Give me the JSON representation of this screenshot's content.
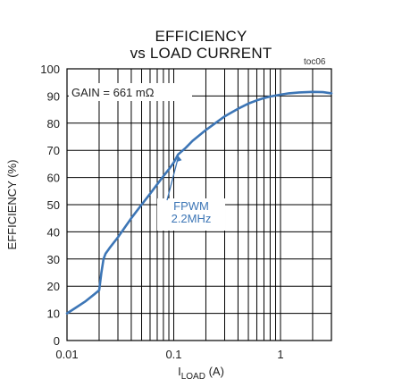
{
  "chart_data": {
    "type": "line",
    "title": "EFFICIENCY",
    "subtitle": "vs LOAD CURRENT",
    "figure_id": "toc06",
    "xlabel_main": "I",
    "xlabel_sub": "LOAD",
    "xlabel_unit": " (A)",
    "ylabel": "EFFICIENCY (%)",
    "x_scale": "log",
    "xlim": [
      0.01,
      3
    ],
    "ylim": [
      0,
      100
    ],
    "x_ticks": [
      0.01,
      0.1,
      1
    ],
    "x_tick_labels": [
      "0.01",
      "0.1",
      "1"
    ],
    "y_ticks": [
      0,
      10,
      20,
      30,
      40,
      50,
      60,
      70,
      80,
      90,
      100
    ],
    "y_tick_labels": [
      "0",
      "10",
      "20",
      "30",
      "40",
      "50",
      "60",
      "70",
      "80",
      "90",
      "100"
    ],
    "grid": true,
    "annotations": [
      {
        "text": "GAIN = 661 mΩ"
      },
      {
        "lines": [
          "FPWM",
          "2.2MHz"
        ],
        "arrow_to": [
          0.11,
          68
        ]
      }
    ],
    "colors": {
      "line": "#3d76b6",
      "grid": "#000000",
      "annotation_text": "#3d76b6"
    },
    "series": [
      {
        "x": [
          0.01,
          0.012,
          0.015,
          0.018,
          0.02,
          0.021,
          0.022,
          0.023,
          0.025,
          0.03,
          0.04,
          0.05,
          0.06,
          0.07,
          0.08,
          0.09,
          0.1,
          0.11,
          0.13,
          0.15,
          0.2,
          0.3,
          0.4,
          0.5,
          0.6,
          0.7,
          0.8,
          1,
          1.2,
          1.5,
          2,
          2.5,
          3
        ],
        "y": [
          10,
          12,
          14.5,
          17,
          18.5,
          25,
          30,
          32,
          34,
          38,
          45,
          50,
          54,
          57.5,
          60.5,
          63,
          65.5,
          68.5,
          71,
          73.5,
          77.5,
          82.5,
          85.3,
          87.2,
          88.4,
          89.2,
          89.8,
          90.5,
          91,
          91.3,
          91.5,
          91.4,
          91
        ]
      }
    ]
  }
}
